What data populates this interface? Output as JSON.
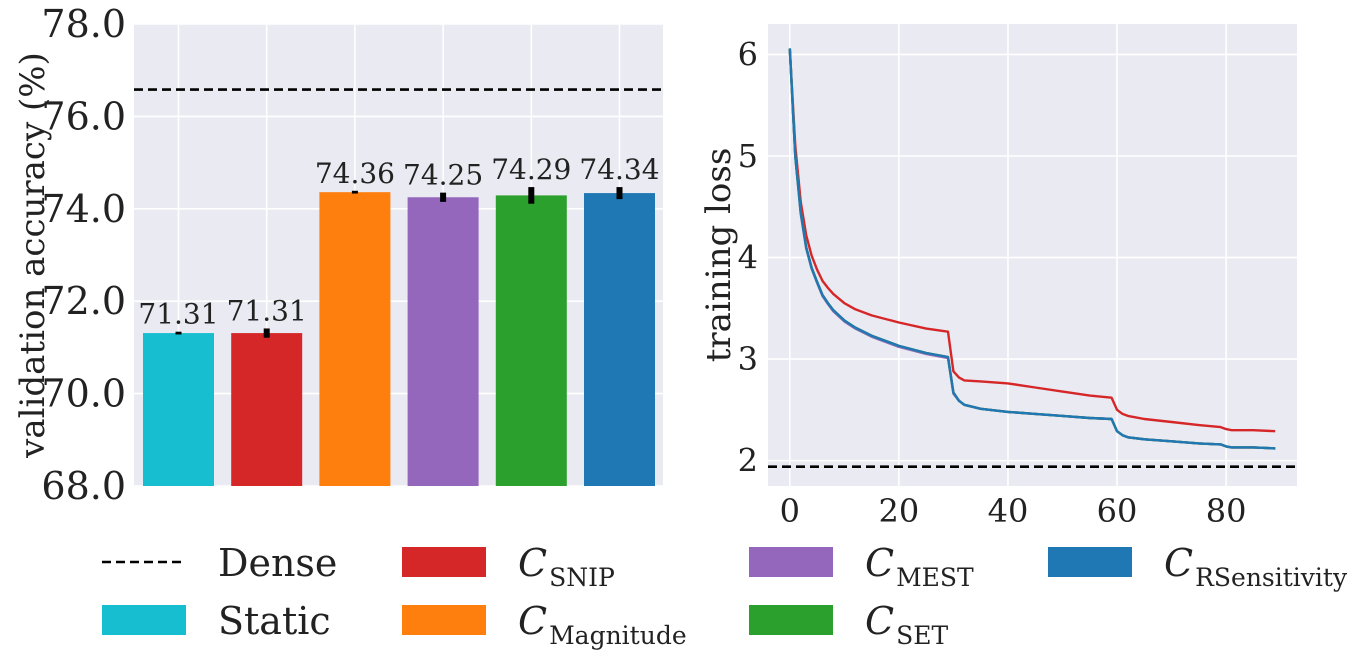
{
  "chart_data": [
    {
      "type": "bar",
      "ylabel": "validation accuracy (%)",
      "xlabel": "",
      "ylim": [
        68.0,
        78.0
      ],
      "yticks": [
        "68.0",
        "70.0",
        "72.0",
        "74.0",
        "76.0",
        "78.0"
      ],
      "grid": true,
      "categories": [
        "Static",
        "SNIP",
        "Magnitude",
        "MEST",
        "SET",
        "RSensitivity"
      ],
      "values": [
        71.31,
        71.31,
        74.36,
        74.25,
        74.29,
        74.34
      ],
      "value_labels": [
        "71.31",
        "71.31",
        "74.36",
        "74.25",
        "74.29",
        "74.34"
      ],
      "error": [
        0.03,
        0.1,
        0.03,
        0.1,
        0.18,
        0.13
      ],
      "colors": [
        "#17becf",
        "#d62728",
        "#ff7f0e",
        "#9467bd",
        "#2ca02c",
        "#1f77b4"
      ],
      "reference_line": {
        "name": "Dense",
        "value": 76.58
      }
    },
    {
      "type": "line",
      "ylabel": "training loss",
      "xlabel": "",
      "xlim": [
        -4,
        93
      ],
      "ylim": [
        1.75,
        6.3
      ],
      "xticks": [
        "0",
        "20",
        "40",
        "60",
        "80"
      ],
      "yticks": [
        "2",
        "3",
        "4",
        "5",
        "6"
      ],
      "grid": true,
      "reference_line": {
        "name": "Dense",
        "value": 1.94
      },
      "series": [
        {
          "name": "SNIP",
          "color": "#d62728",
          "x": [
            0,
            1,
            2,
            3,
            4,
            5,
            6,
            7,
            8,
            10,
            12,
            15,
            20,
            25,
            29,
            30,
            31,
            32,
            35,
            40,
            45,
            50,
            55,
            59,
            60,
            61,
            62,
            65,
            70,
            75,
            79,
            80,
            81,
            85,
            89
          ],
          "y": [
            6.05,
            5.1,
            4.55,
            4.22,
            4.02,
            3.88,
            3.77,
            3.7,
            3.64,
            3.55,
            3.49,
            3.43,
            3.36,
            3.3,
            3.27,
            2.88,
            2.82,
            2.79,
            2.78,
            2.76,
            2.72,
            2.68,
            2.64,
            2.62,
            2.5,
            2.46,
            2.44,
            2.41,
            2.38,
            2.35,
            2.33,
            2.31,
            2.3,
            2.3,
            2.29
          ]
        },
        {
          "name": "Magnitude",
          "color": "#ff7f0e",
          "x": [
            0,
            1,
            2,
            3,
            4,
            5,
            6,
            7,
            8,
            10,
            12,
            15,
            20,
            25,
            29,
            30,
            31,
            32,
            35,
            40,
            45,
            50,
            55,
            59,
            60,
            61,
            62,
            65,
            70,
            75,
            79,
            80,
            81,
            85,
            89
          ],
          "y": [
            6.06,
            5.0,
            4.45,
            4.1,
            3.9,
            3.76,
            3.63,
            3.55,
            3.48,
            3.38,
            3.31,
            3.23,
            3.13,
            3.06,
            3.02,
            2.67,
            2.59,
            2.55,
            2.51,
            2.48,
            2.46,
            2.44,
            2.42,
            2.41,
            2.29,
            2.25,
            2.23,
            2.21,
            2.19,
            2.17,
            2.16,
            2.14,
            2.13,
            2.13,
            2.12
          ]
        },
        {
          "name": "MEST",
          "color": "#9467bd",
          "x": [
            0,
            1,
            2,
            3,
            4,
            5,
            6,
            7,
            8,
            10,
            12,
            15,
            20,
            25,
            29,
            30,
            31,
            32,
            35,
            40,
            45,
            50,
            55,
            59,
            60,
            61,
            62,
            65,
            70,
            75,
            79,
            80,
            81,
            85,
            89
          ],
          "y": [
            6.06,
            4.99,
            4.43,
            4.09,
            3.89,
            3.75,
            3.62,
            3.54,
            3.47,
            3.37,
            3.3,
            3.22,
            3.12,
            3.05,
            3.01,
            2.66,
            2.59,
            2.55,
            2.51,
            2.48,
            2.46,
            2.44,
            2.42,
            2.41,
            2.29,
            2.25,
            2.23,
            2.21,
            2.19,
            2.17,
            2.16,
            2.14,
            2.13,
            2.13,
            2.12
          ]
        },
        {
          "name": "SET",
          "color": "#2ca02c",
          "x": [
            0,
            1,
            2,
            3,
            4,
            5,
            6,
            7,
            8,
            10,
            12,
            15,
            20,
            25,
            29,
            30,
            31,
            32,
            35,
            40,
            45,
            50,
            55,
            59,
            60,
            61,
            62,
            65,
            70,
            75,
            79,
            80,
            81,
            85,
            89
          ],
          "y": [
            6.06,
            5.0,
            4.45,
            4.1,
            3.9,
            3.76,
            3.63,
            3.55,
            3.48,
            3.38,
            3.31,
            3.23,
            3.13,
            3.06,
            3.02,
            2.67,
            2.59,
            2.55,
            2.51,
            2.48,
            2.46,
            2.44,
            2.42,
            2.41,
            2.29,
            2.25,
            2.23,
            2.21,
            2.19,
            2.17,
            2.16,
            2.14,
            2.13,
            2.13,
            2.12
          ]
        },
        {
          "name": "RSensitivity",
          "color": "#1f77b4",
          "x": [
            0,
            1,
            2,
            3,
            4,
            5,
            6,
            7,
            8,
            10,
            12,
            15,
            20,
            25,
            29,
            30,
            31,
            32,
            35,
            40,
            45,
            50,
            55,
            59,
            60,
            61,
            62,
            65,
            70,
            75,
            79,
            80,
            81,
            85,
            89
          ],
          "y": [
            6.06,
            5.0,
            4.45,
            4.1,
            3.9,
            3.76,
            3.63,
            3.55,
            3.48,
            3.38,
            3.31,
            3.23,
            3.13,
            3.06,
            3.02,
            2.67,
            2.59,
            2.55,
            2.51,
            2.48,
            2.46,
            2.44,
            2.42,
            2.41,
            2.29,
            2.25,
            2.23,
            2.21,
            2.19,
            2.17,
            2.16,
            2.14,
            2.13,
            2.13,
            2.12
          ]
        }
      ]
    }
  ],
  "legend": {
    "placement": "bottom",
    "entries": [
      {
        "kind": "dashed",
        "name": "Dense",
        "color": "#000000",
        "main": "Dense",
        "sub": ""
      },
      {
        "kind": "patch",
        "name": "Static",
        "color": "#17becf",
        "main": "Static",
        "sub": ""
      },
      {
        "kind": "patch",
        "name": "SNIP",
        "color": "#d62728",
        "main": "C",
        "sub": "SNIP"
      },
      {
        "kind": "patch",
        "name": "Magnitude",
        "color": "#ff7f0e",
        "main": "C",
        "sub": "Magnitude"
      },
      {
        "kind": "patch",
        "name": "MEST",
        "color": "#9467bd",
        "main": "C",
        "sub": "MEST"
      },
      {
        "kind": "patch",
        "name": "SET",
        "color": "#2ca02c",
        "main": "C",
        "sub": "SET"
      },
      {
        "kind": "patch",
        "name": "RSensitivity",
        "color": "#1f77b4",
        "main": "C",
        "sub": "RSensitivity"
      }
    ]
  },
  "colors": {
    "panel_bg": "#eaeaf2",
    "grid": "#ffffff",
    "text": "#222222"
  }
}
